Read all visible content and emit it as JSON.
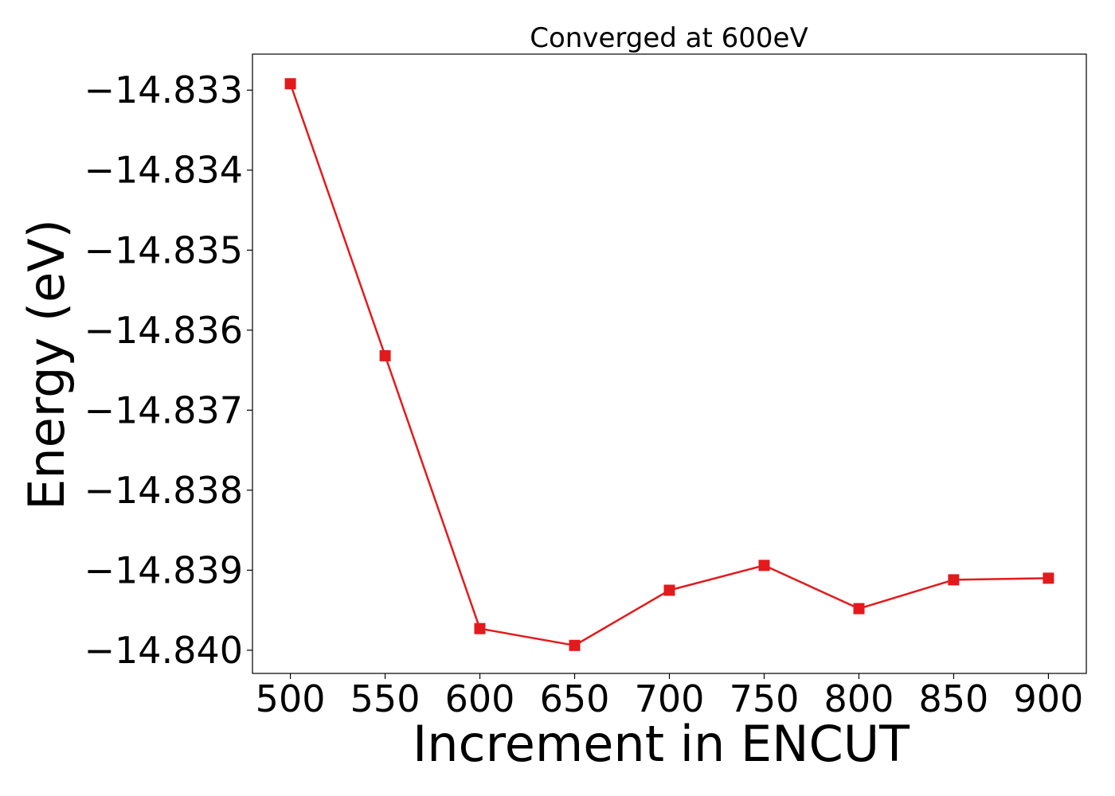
{
  "chart_data": {
    "type": "line",
    "title": "Converged at 600eV",
    "xlabel": "Increment in ENCUT",
    "ylabel": "Energy (eV)",
    "x": [
      500,
      550,
      600,
      650,
      700,
      750,
      800,
      850,
      900
    ],
    "series": [
      {
        "values": [
          -14.83292,
          -14.83632,
          -14.83973,
          -14.83994,
          -14.83925,
          -14.83894,
          -14.83948,
          -14.83912,
          -14.8391
        ],
        "color": "#e31a1c",
        "marker": "square"
      }
    ],
    "xlim": [
      480,
      920
    ],
    "ylim": [
      -14.84029,
      -14.83255
    ],
    "xticks": [
      500,
      550,
      600,
      650,
      700,
      750,
      800,
      850,
      900
    ],
    "yticks": [
      -14.833,
      -14.834,
      -14.835,
      -14.836,
      -14.837,
      -14.838,
      -14.839,
      -14.84
    ],
    "ytick_labels": [
      "−14.833",
      "−14.834",
      "−14.835",
      "−14.836",
      "−14.837",
      "−14.838",
      "−14.839",
      "−14.840"
    ],
    "grid": false,
    "legend": "none"
  }
}
